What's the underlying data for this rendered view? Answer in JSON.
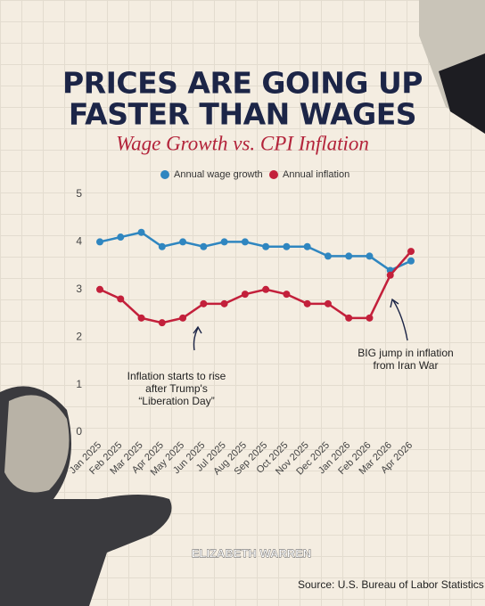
{
  "chart_data": {
    "type": "line",
    "title": [
      "PRICES ARE GOING UP",
      "FASTER THAN WAGES"
    ],
    "subtitle": "Wage Growth vs. CPI Inflation",
    "categories": [
      "Jan 2025",
      "Feb 2025",
      "Mar 2025",
      "Apr 2025",
      "May 2025",
      "Jun 2025",
      "Jul 2025",
      "Aug 2025",
      "Sep 2025",
      "Oct 2025",
      "Nov 2025",
      "Dec 2025",
      "Jan 2026",
      "Feb 2026",
      "Mar 2026",
      "Apr 2026"
    ],
    "series": [
      {
        "name": "Annual wage growth",
        "color": "#2f86c0",
        "values": [
          4.0,
          4.1,
          4.2,
          3.9,
          4.0,
          3.9,
          4.0,
          4.0,
          3.9,
          3.9,
          3.9,
          3.7,
          3.7,
          3.7,
          3.4,
          3.6
        ]
      },
      {
        "name": "Annual inflation",
        "color": "#c3203b",
        "values": [
          3.0,
          2.8,
          2.4,
          2.3,
          2.4,
          2.7,
          2.7,
          2.9,
          3.0,
          2.9,
          2.7,
          2.7,
          2.4,
          2.4,
          3.3,
          3.8
        ]
      }
    ],
    "ylim": [
      0,
      5
    ],
    "yticks": [
      0,
      1,
      2,
      3,
      4,
      5
    ],
    "grid": false,
    "annotations": [
      {
        "lines": [
          "Inflation starts to rise",
          "after Trump's",
          "“Liberation Day”"
        ]
      },
      {
        "lines": [
          "BIG jump in inflation",
          "from Iran War"
        ]
      }
    ],
    "watermark": "ELIZABETH WARREN",
    "source": "Source: U.S. Bureau of Labor Statistics"
  }
}
